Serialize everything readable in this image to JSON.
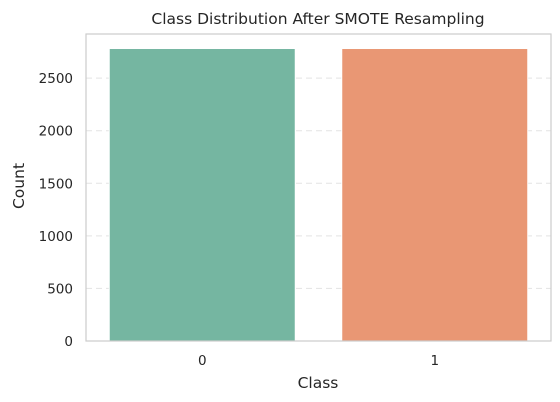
{
  "chart_data": {
    "type": "bar",
    "title": "Class Distribution After SMOTE Resampling",
    "xlabel": "Class",
    "ylabel": "Count",
    "categories": [
      "0",
      "1"
    ],
    "values": [
      2782,
      2782
    ],
    "colors": [
      "#75b6a1",
      "#e99774"
    ],
    "ylim": [
      0,
      2920
    ],
    "yticks": [
      0,
      500,
      1000,
      1500,
      2000,
      2500
    ],
    "grid": true,
    "legend": "none"
  }
}
